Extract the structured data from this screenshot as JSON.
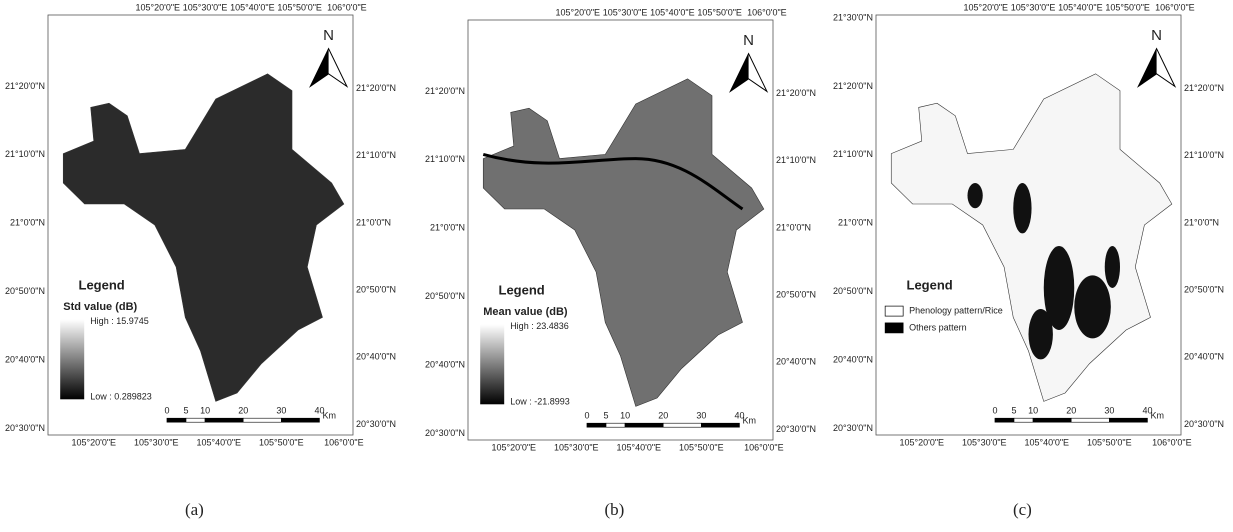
{
  "panels": [
    {
      "caption": "(a)",
      "lon_labels": [
        "105°20'0\"E",
        "105°30'0\"E",
        "105°40'0\"E",
        "105°50'0\"E",
        "106°0'0\"E"
      ],
      "lat_labels_left": [
        "21°20'0\"N",
        "21°10'0\"N",
        "21°0'0\"N",
        "20°50'0\"N",
        "20°40'0\"N",
        "20°30'0\"N"
      ],
      "lat_labels_right": [
        "21°20'0\"N",
        "21°10'0\"N",
        "21°0'0\"N",
        "20°50'0\"N",
        "20°40'0\"N",
        "20°30'0\"N"
      ],
      "north": "N",
      "legend": {
        "title": "Legend",
        "subtitle": "Std value (dB)",
        "high": "High : 15.9745",
        "low": "Low : 0.289823"
      },
      "scale": {
        "ticks": [
          0,
          5,
          10,
          20,
          30,
          40
        ],
        "unit": "Km"
      }
    },
    {
      "caption": "(b)",
      "lon_labels": [
        "105°20'0\"E",
        "105°30'0\"E",
        "105°40'0\"E",
        "105°50'0\"E",
        "106°0'0\"E"
      ],
      "lat_labels_left": [
        "21°20'0\"N",
        "21°10'0\"N",
        "21°0'0\"N",
        "20°50'0\"N",
        "20°40'0\"N",
        "20°30'0\"N"
      ],
      "lat_labels_right": [
        "21°20'0\"N",
        "21°10'0\"N",
        "21°0'0\"N",
        "20°50'0\"N",
        "20°40'0\"N",
        "20°30'0\"N"
      ],
      "north": "N",
      "legend": {
        "title": "Legend",
        "subtitle": "Mean value (dB)",
        "high": "High : 23.4836",
        "low": "Low : -21.8993"
      },
      "scale": {
        "ticks": [
          0,
          5,
          10,
          20,
          30,
          40
        ],
        "unit": "Km"
      }
    },
    {
      "caption": "(c)",
      "lon_labels": [
        "105°20'0\"E",
        "105°30'0\"E",
        "105°40'0\"E",
        "105°50'0\"E",
        "106°0'0\"E"
      ],
      "lat_labels_left": [
        "21°30'0\"N",
        "21°20'0\"N",
        "21°10'0\"N",
        "21°0'0\"N",
        "20°50'0\"N",
        "20°40'0\"N",
        "20°30'0\"N"
      ],
      "lat_labels_right": [
        "21°20'0\"N",
        "21°10'0\"N",
        "21°0'0\"N",
        "20°50'0\"N",
        "20°40'0\"N",
        "20°30'0\"N"
      ],
      "north": "N",
      "legend": {
        "title": "Legend",
        "items": [
          "Phenology pattern/Rice",
          "Others pattern"
        ]
      },
      "scale": {
        "ticks": [
          0,
          5,
          10,
          20,
          30,
          40
        ],
        "unit": "Km"
      }
    }
  ]
}
